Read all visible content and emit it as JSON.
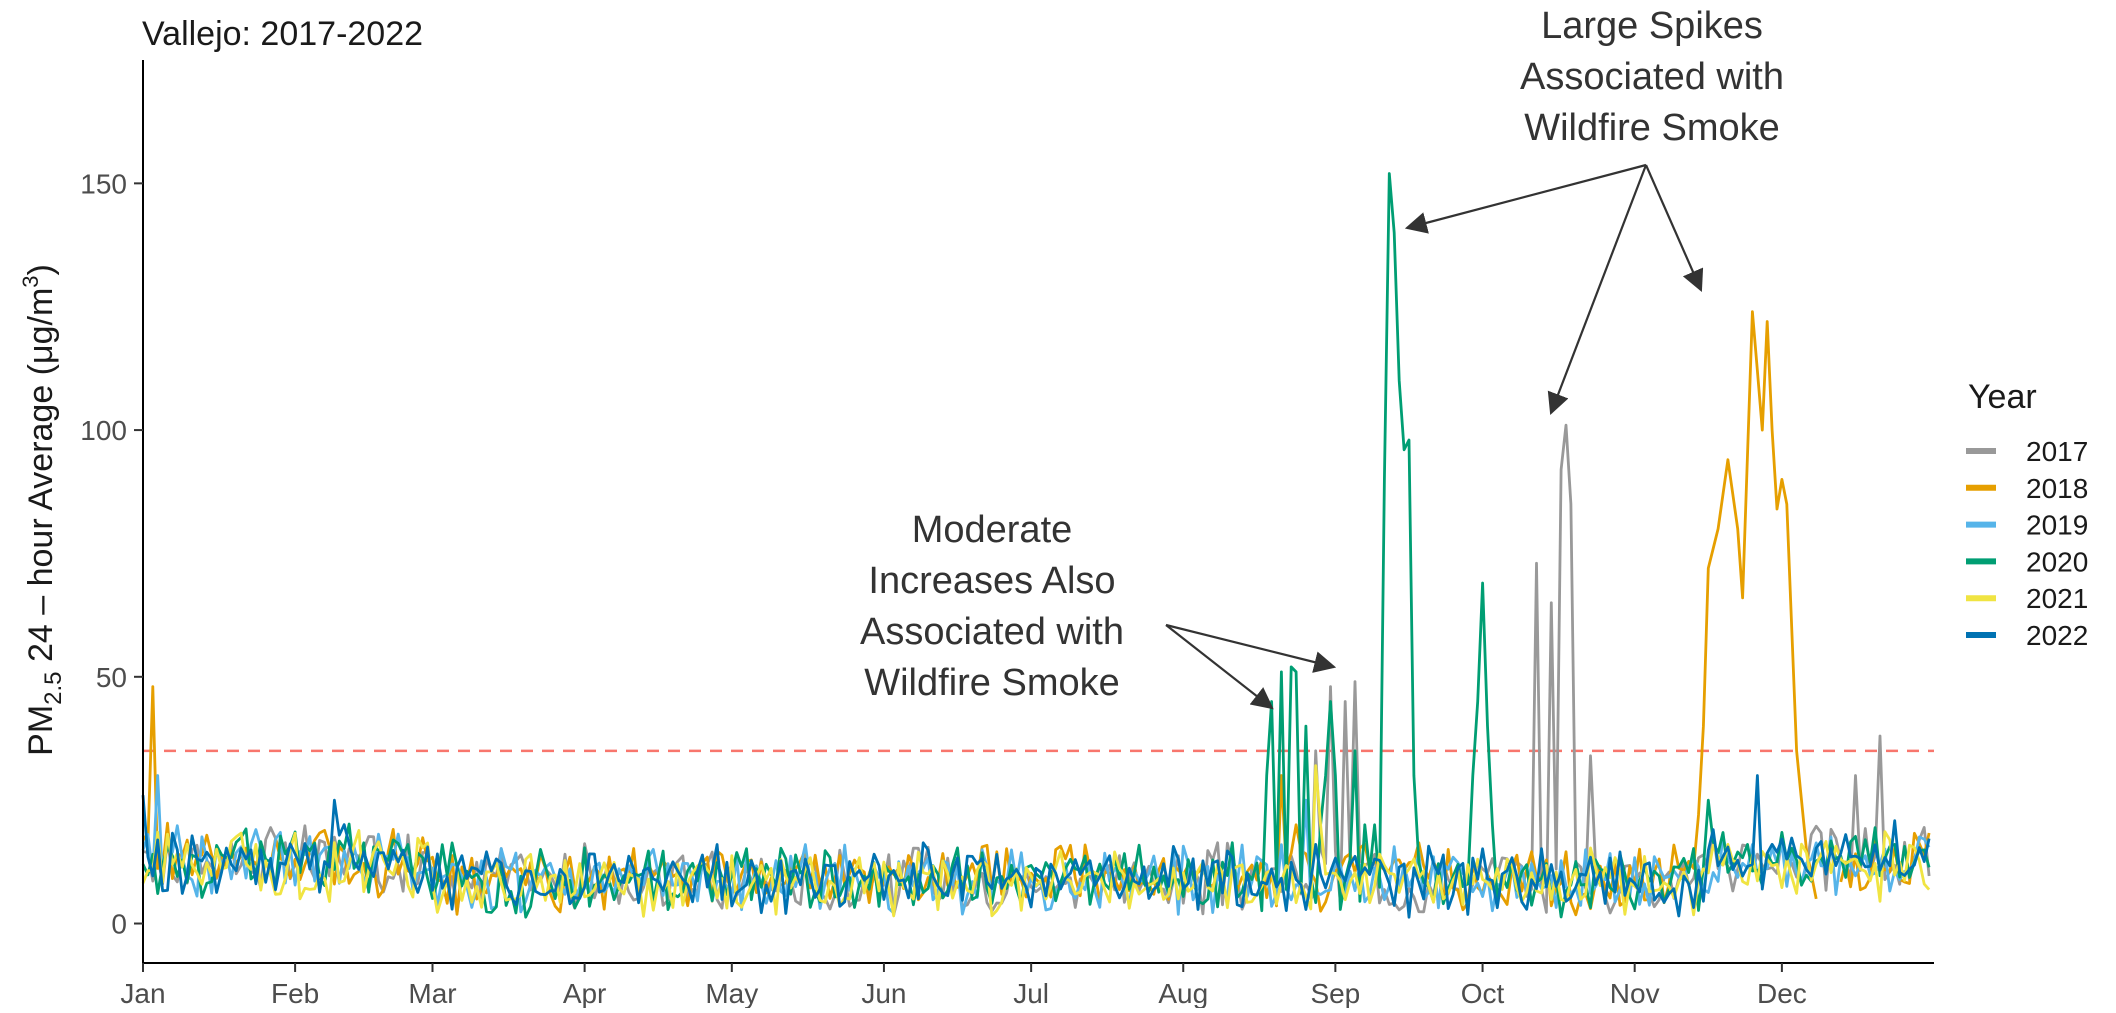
{
  "chart_data": {
    "type": "line",
    "title": "Vallejo: 2017-2022",
    "ylabel": {
      "prefix": "PM",
      "sub": "2.5",
      "middle": " 24 – hour Average (μg/m",
      "sup": "3",
      "suffix": ")"
    },
    "xlabel": "",
    "x_tick_labels": [
      "Jan",
      "Feb",
      "Mar",
      "Apr",
      "May",
      "Jun",
      "Jul",
      "Aug",
      "Sep",
      "Oct",
      "Nov",
      "Dec"
    ],
    "x_tick_days": [
      1,
      32,
      60,
      91,
      121,
      152,
      182,
      213,
      244,
      274,
      305,
      335
    ],
    "xlim": [
      1,
      366
    ],
    "y_ticks": [
      0,
      50,
      100,
      150
    ],
    "ylim": [
      -8,
      175
    ],
    "grid": false,
    "reference_line": {
      "y": 35,
      "color": "#f8766d",
      "style": "dashed"
    },
    "legend": {
      "title": "Year",
      "position": "right"
    },
    "series": [
      {
        "name": "2017",
        "color": "#999999",
        "seed": 17,
        "base": 9,
        "spikes": [
          [
            240,
            35
          ],
          [
            243,
            48
          ],
          [
            246,
            45
          ],
          [
            248,
            49
          ],
          [
            285,
            73
          ],
          [
            288,
            65
          ],
          [
            290,
            92
          ],
          [
            291,
            101
          ],
          [
            292,
            85
          ],
          [
            296,
            34
          ],
          [
            350,
            30
          ],
          [
            355,
            38
          ]
        ]
      },
      {
        "name": "2018",
        "color": "#e69f00",
        "seed": 18,
        "base": 9,
        "gap": [
          320,
          346
        ],
        "spikes": [
          [
            3,
            48
          ],
          [
            233,
            30
          ],
          [
            236,
            20
          ]
        ],
        "peak": [
          [
            318,
            22
          ],
          [
            319,
            40
          ],
          [
            320,
            72
          ],
          [
            322,
            80
          ],
          [
            324,
            94
          ],
          [
            326,
            80
          ],
          [
            327,
            66
          ],
          [
            329,
            124
          ],
          [
            331,
            100
          ],
          [
            332,
            122
          ],
          [
            333,
            100
          ],
          [
            334,
            84
          ],
          [
            335,
            90
          ],
          [
            336,
            85
          ],
          [
            338,
            35
          ],
          [
            340,
            15
          ],
          [
            342,
            5
          ]
        ]
      },
      {
        "name": "2019",
        "color": "#56b4e9",
        "seed": 19,
        "base": 9,
        "spikes": [
          [
            4,
            30
          ],
          [
            238,
            25
          ]
        ]
      },
      {
        "name": "2020",
        "color": "#009e73",
        "seed": 20,
        "base": 9,
        "spikes": [
          [
            230,
            30
          ],
          [
            231,
            45
          ],
          [
            233,
            51
          ],
          [
            235,
            52
          ],
          [
            236,
            51
          ],
          [
            238,
            40
          ],
          [
            241,
            20
          ],
          [
            242,
            30
          ],
          [
            243,
            45
          ],
          [
            244,
            30
          ],
          [
            248,
            35
          ],
          [
            250,
            20
          ],
          [
            252,
            20
          ],
          [
            254,
            90
          ],
          [
            255,
            152
          ],
          [
            256,
            140
          ],
          [
            257,
            110
          ],
          [
            258,
            96
          ],
          [
            259,
            98
          ],
          [
            260,
            30
          ],
          [
            272,
            30
          ],
          [
            273,
            45
          ],
          [
            274,
            69
          ],
          [
            275,
            40
          ],
          [
            276,
            20
          ],
          [
            320,
            25
          ]
        ]
      },
      {
        "name": "2021",
        "color": "#f0e442",
        "seed": 21,
        "base": 8,
        "spikes": [
          [
            240,
            32
          ],
          [
            241,
            20
          ]
        ]
      },
      {
        "name": "2022",
        "color": "#0072b2",
        "seed": 22,
        "base": 9,
        "spikes": [
          [
            1,
            26
          ],
          [
            40,
            25
          ],
          [
            330,
            30
          ]
        ]
      }
    ],
    "annotations": [
      {
        "lines": [
          "Large Spikes",
          "Associated with",
          "Wildfire Smoke"
        ]
      },
      {
        "lines": [
          "Moderate",
          "Increases Also",
          "Associated with",
          "Wildfire Smoke"
        ]
      }
    ]
  }
}
